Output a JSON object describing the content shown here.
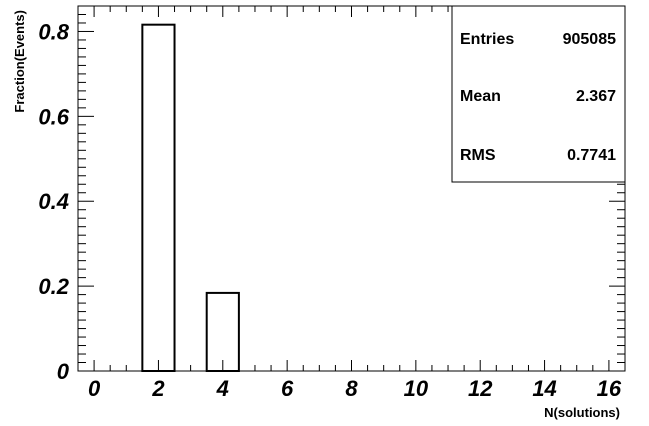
{
  "chart_data": {
    "type": "bar",
    "xlabel": "N(solutions)",
    "ylabel": "Fraction(Events)",
    "xlim": [
      -0.5,
      16.5
    ],
    "ylim": [
      0,
      0.86
    ],
    "x_ticks": [
      0,
      2,
      4,
      6,
      8,
      10,
      12,
      14,
      16
    ],
    "y_ticks": [
      0,
      0.2,
      0.4,
      0.6,
      0.8
    ],
    "x_tick_labels": [
      "0",
      "2",
      "4",
      "6",
      "8",
      "10",
      "12",
      "14",
      "16"
    ],
    "y_tick_labels": [
      "0",
      "0.2",
      "0.4",
      "0.6",
      "0.8"
    ],
    "bin_width": 1,
    "bars": [
      {
        "x": 2,
        "value": 0.816
      },
      {
        "x": 4,
        "value": 0.184
      }
    ],
    "legend_position": "top-right",
    "stats": [
      {
        "label": "Entries",
        "value": "905085"
      },
      {
        "label": "Mean",
        "value": "2.367"
      },
      {
        "label": "RMS",
        "value": "0.7741"
      }
    ]
  }
}
